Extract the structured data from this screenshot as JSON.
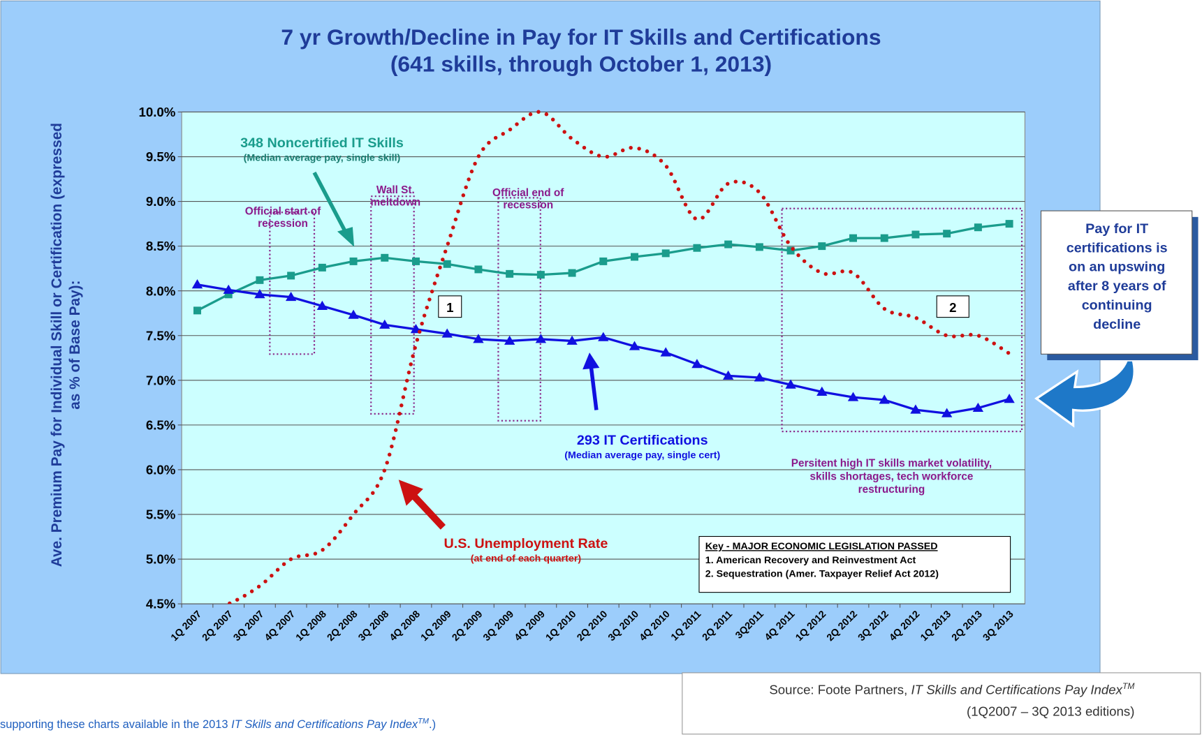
{
  "chart_data": {
    "type": "line",
    "title": [
      "7 yr Growth/Decline in Pay for IT Skills and Certifications",
      "(641 skills, through October 1, 2013)"
    ],
    "y_label": [
      "Ave. Premium Pay for Individual Skill or Certification (expressed",
      "as % of Base Pay):"
    ],
    "categories": [
      "1Q 2007",
      "2Q 2007",
      "3Q 2007",
      "4Q 2007",
      "1Q 2008",
      "2Q 2008",
      "3Q 2008",
      "4Q 2008",
      "1Q 2009",
      "2Q 2009",
      "3Q 2009",
      "4Q 2009",
      "1Q 2010",
      "2Q 2010",
      "3Q 2010",
      "4Q 2010",
      "1Q 2011",
      "2Q 2011",
      "3Q2011",
      "4Q 2011",
      "1Q 2012",
      "2Q 2012",
      "3Q 2012",
      "4Q 2012",
      "1Q 2013",
      "2Q 2013",
      "3Q 2013"
    ],
    "ylim": [
      4.5,
      10
    ],
    "yticks": [
      {
        "value": 4.5,
        "label": "4.5%"
      },
      {
        "value": 5,
        "label": "5.0%"
      },
      {
        "value": 5.5,
        "label": "5.5%"
      },
      {
        "value": 6,
        "label": "6.0%"
      },
      {
        "value": 6.5,
        "label": "6.5%"
      },
      {
        "value": 7,
        "label": "7.0%"
      },
      {
        "value": 7.5,
        "label": "7.5%"
      },
      {
        "value": 8,
        "label": "8.0%"
      },
      {
        "value": 8.5,
        "label": "8.5%"
      },
      {
        "value": 9,
        "label": "9.0%"
      },
      {
        "value": 9.5,
        "label": "9.5%"
      },
      {
        "value": 10,
        "label": "10.0%"
      }
    ],
    "grid": true,
    "series": [
      {
        "name": "348 Noncertified IT Skills",
        "note": "(Median average pay, single skill)",
        "color": "#1a9c8c",
        "marker": "square",
        "values": [
          7.78,
          7.96,
          8.12,
          8.17,
          8.26,
          8.33,
          8.37,
          8.33,
          8.3,
          8.24,
          8.19,
          8.18,
          8.2,
          8.33,
          8.38,
          8.42,
          8.48,
          8.52,
          8.49,
          8.45,
          8.5,
          8.59,
          8.59,
          8.63,
          8.64,
          8.71,
          8.75
        ]
      },
      {
        "name": "293 IT Certifications",
        "note": "(Median average pay, single cert)",
        "color": "#1010e0",
        "marker": "triangle",
        "values": [
          8.07,
          8.01,
          7.96,
          7.93,
          7.83,
          7.73,
          7.62,
          7.57,
          7.52,
          7.46,
          7.44,
          7.46,
          7.44,
          7.48,
          7.38,
          7.31,
          7.18,
          7.05,
          7.03,
          6.95,
          6.87,
          6.81,
          6.78,
          6.67,
          6.63,
          6.69,
          6.79
        ]
      },
      {
        "name": "U.S. Unemployment Rate",
        "note": "(at end of each quarter)",
        "color": "#cc1111",
        "marker": "dotted",
        "values": [
          4.4,
          4.5,
          4.7,
          5.0,
          5.1,
          5.5,
          6.0,
          7.4,
          8.5,
          9.5,
          9.8,
          10.0,
          9.7,
          9.5,
          9.6,
          9.4,
          8.8,
          9.2,
          9.1,
          8.5,
          8.2,
          8.2,
          7.8,
          7.7,
          7.5,
          7.5,
          7.3
        ]
      }
    ],
    "annotations": [
      [
        "Official start of",
        "recession"
      ],
      [
        "Wall St.",
        "meltdown"
      ],
      [
        "Official end of",
        "recession"
      ],
      [
        "Persitent high IT skills market volatility,",
        "skills shortages, tech workforce",
        "restructuring"
      ]
    ],
    "markers": [
      "1",
      "2"
    ],
    "key": [
      "Key - MAJOR ECONOMIC LEGISLATION PASSED",
      "1. American Recovery and Reinvestment Act",
      "2. Sequestration (Amer. Taxpayer Relief Act  2012)"
    ],
    "callout": [
      "Pay for IT",
      "certifications is",
      "on an upswing",
      "after 8 years of",
      "continuing",
      "decline"
    ]
  },
  "source": {
    "prefix": "Source: Foote Partners, ",
    "italic": "IT Skills and Certifications Pay Index",
    "tm": "TM",
    "line2": "(1Q2007 – 3Q 2013 editions)"
  },
  "footer": {
    "prefix": "supporting these charts available in the 2013 ",
    "italic": "IT Skills and Certifications Pay Index",
    "tm": "TM",
    "suffix": ".)"
  }
}
